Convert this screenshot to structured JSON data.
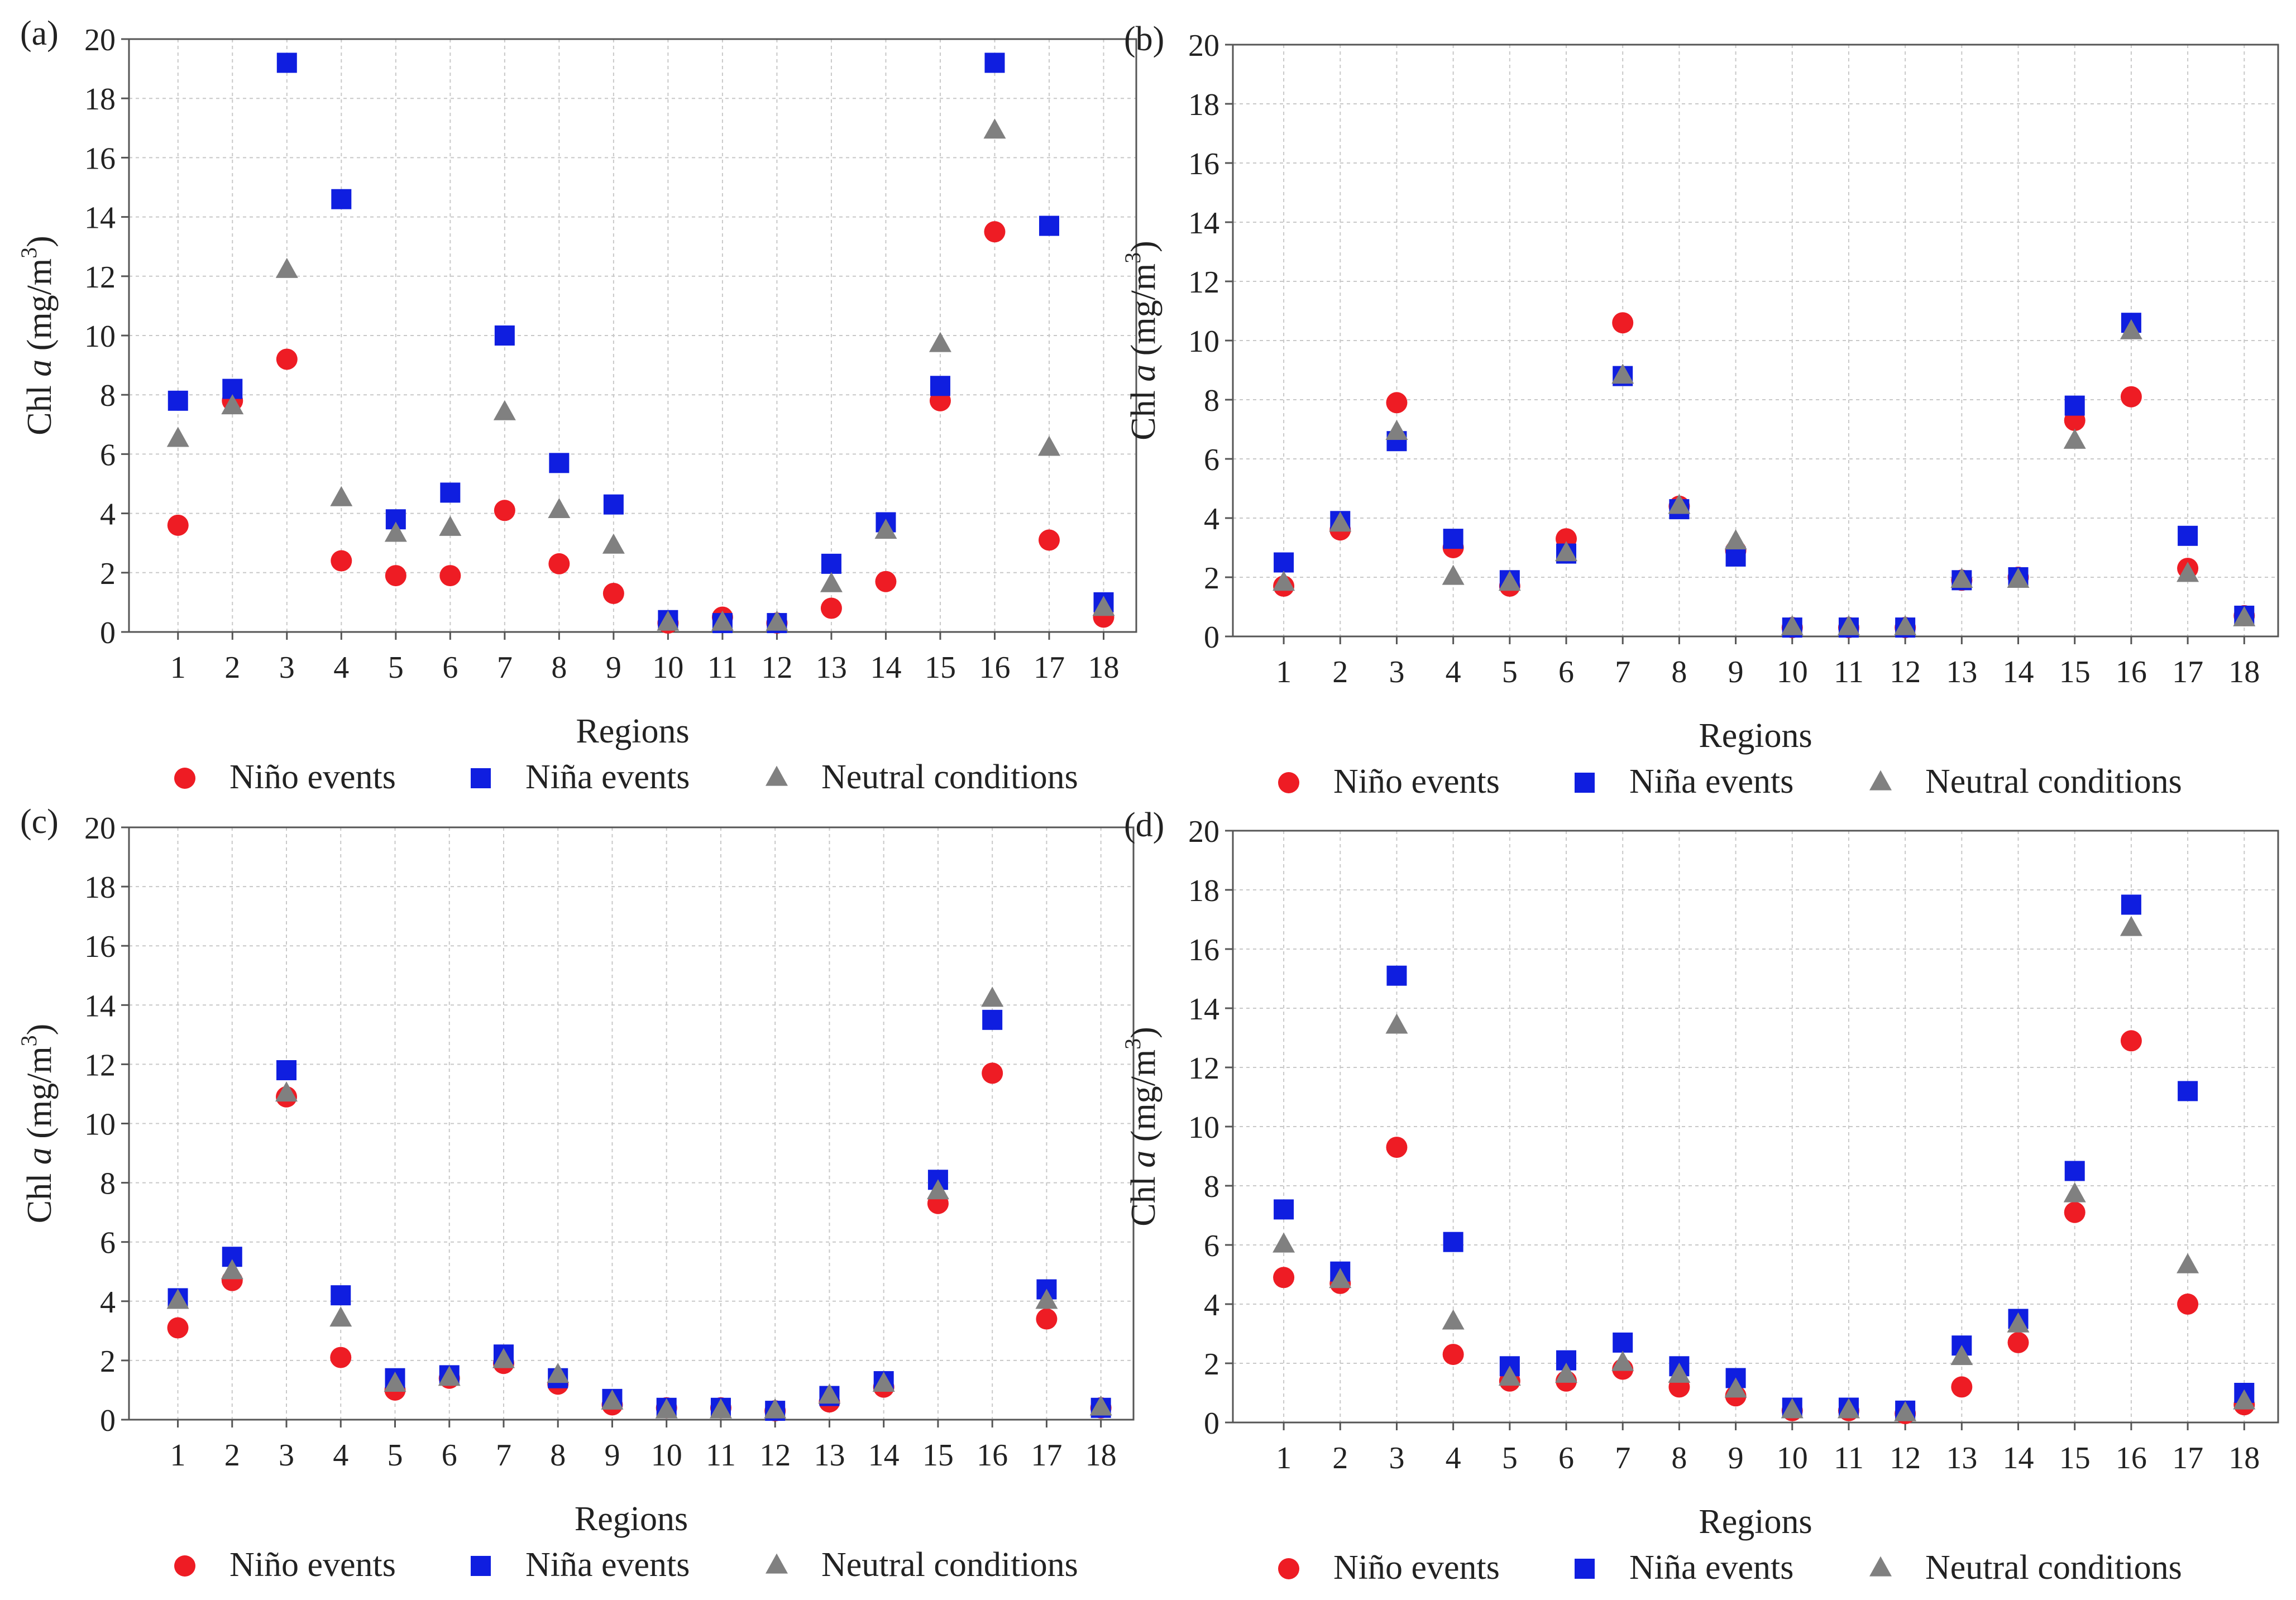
{
  "colors": {
    "nino": "#ee1c24",
    "nina": "#0f1ee0",
    "neutral": "#808080",
    "grid": "#c8c8c8",
    "axis": "#555555"
  },
  "chart_data": [
    {
      "type": "scatter",
      "panel_label": "(a)",
      "xlabel": "Regions",
      "ylabel_prefix": "Chl ",
      "ylabel_italic": "a",
      "ylabel_unit": " (mg/m",
      "ylabel_sup": "3",
      "ylabel_close": ")",
      "categories": [
        "1",
        "2",
        "3",
        "4",
        "5",
        "6",
        "7",
        "8",
        "9",
        "10",
        "11",
        "12",
        "13",
        "14",
        "15",
        "16",
        "17",
        "18"
      ],
      "yticks": [
        "0",
        "2",
        "4",
        "6",
        "8",
        "10",
        "12",
        "14",
        "16",
        "18",
        "20"
      ],
      "ylim": [
        0,
        20
      ],
      "grid": true,
      "legend_position": "bottom",
      "series": [
        {
          "name": "Niño events",
          "marker": "circle",
          "values": [
            3.6,
            7.8,
            9.2,
            2.4,
            1.9,
            1.9,
            4.1,
            2.3,
            1.3,
            0.3,
            0.5,
            0.3,
            0.8,
            1.7,
            7.8,
            13.5,
            3.1,
            0.5
          ]
        },
        {
          "name": "Niña events",
          "marker": "square",
          "values": [
            7.8,
            8.2,
            19.2,
            14.6,
            3.8,
            4.7,
            10.0,
            5.7,
            4.3,
            0.4,
            0.3,
            0.3,
            2.3,
            3.7,
            8.3,
            19.2,
            13.7,
            1.0
          ]
        },
        {
          "name": "Neutral conditions",
          "marker": "triangle",
          "values": [
            6.5,
            7.6,
            12.2,
            4.5,
            3.3,
            3.5,
            7.4,
            4.1,
            2.9,
            0.3,
            0.3,
            0.3,
            1.6,
            3.4,
            9.7,
            16.9,
            6.2,
            0.8
          ]
        }
      ]
    },
    {
      "type": "scatter",
      "panel_label": "(b)",
      "xlabel": "Regions",
      "ylabel_prefix": "Chl ",
      "ylabel_italic": "a",
      "ylabel_unit": " (mg/m",
      "ylabel_sup": "3",
      "ylabel_close": ")",
      "categories": [
        "1",
        "2",
        "3",
        "4",
        "5",
        "6",
        "7",
        "8",
        "9",
        "10",
        "11",
        "12",
        "13",
        "14",
        "15",
        "16",
        "17",
        "18"
      ],
      "yticks": [
        "0",
        "2",
        "4",
        "6",
        "8",
        "10",
        "12",
        "14",
        "16",
        "18",
        "20"
      ],
      "ylim": [
        0,
        20
      ],
      "grid": true,
      "legend_position": "bottom",
      "series": [
        {
          "name": "Niño events",
          "marker": "circle",
          "values": [
            1.7,
            3.6,
            7.9,
            3.0,
            1.7,
            3.3,
            10.6,
            4.4,
            2.9,
            0.3,
            0.3,
            0.3,
            1.9,
            2.0,
            7.3,
            8.1,
            2.3,
            0.7
          ]
        },
        {
          "name": "Niña events",
          "marker": "square",
          "values": [
            2.5,
            3.9,
            6.6,
            3.3,
            1.9,
            2.8,
            8.8,
            4.3,
            2.7,
            0.3,
            0.3,
            0.3,
            1.9,
            2.0,
            7.8,
            10.6,
            3.4,
            0.7
          ]
        },
        {
          "name": "Neutral conditions",
          "marker": "triangle",
          "values": [
            1.8,
            3.8,
            6.9,
            2.0,
            1.8,
            2.8,
            8.8,
            4.4,
            3.2,
            0.3,
            0.3,
            0.3,
            1.9,
            1.9,
            6.6,
            10.3,
            2.1,
            0.6
          ]
        }
      ]
    },
    {
      "type": "scatter",
      "panel_label": "(c)",
      "xlabel": "Regions",
      "ylabel_prefix": "Chl ",
      "ylabel_italic": "a",
      "ylabel_unit": " (mg/m",
      "ylabel_sup": "3",
      "ylabel_close": ")",
      "categories": [
        "1",
        "2",
        "3",
        "4",
        "5",
        "6",
        "7",
        "8",
        "9",
        "10",
        "11",
        "12",
        "13",
        "14",
        "15",
        "16",
        "17",
        "18"
      ],
      "yticks": [
        "0",
        "2",
        "4",
        "6",
        "8",
        "10",
        "12",
        "14",
        "16",
        "18",
        "20"
      ],
      "ylim": [
        0,
        20
      ],
      "grid": true,
      "legend_position": "bottom",
      "series": [
        {
          "name": "Niño events",
          "marker": "circle",
          "values": [
            3.1,
            4.7,
            10.9,
            2.1,
            1.0,
            1.4,
            1.9,
            1.2,
            0.5,
            0.4,
            0.4,
            0.3,
            0.6,
            1.1,
            7.3,
            11.7,
            3.4,
            0.4
          ]
        },
        {
          "name": "Niña events",
          "marker": "square",
          "values": [
            4.1,
            5.5,
            11.8,
            4.2,
            1.4,
            1.5,
            2.2,
            1.4,
            0.7,
            0.4,
            0.4,
            0.3,
            0.8,
            1.3,
            8.1,
            13.5,
            4.4,
            0.4
          ]
        },
        {
          "name": "Neutral conditions",
          "marker": "triangle",
          "values": [
            4.0,
            5.0,
            11.0,
            3.4,
            1.2,
            1.4,
            2.0,
            1.5,
            0.6,
            0.3,
            0.3,
            0.3,
            0.8,
            1.2,
            7.7,
            14.2,
            4.0,
            0.4
          ]
        }
      ]
    },
    {
      "type": "scatter",
      "panel_label": "(d)",
      "xlabel": "Regions",
      "ylabel_prefix": "Chl ",
      "ylabel_italic": "a",
      "ylabel_unit": " (mg/m",
      "ylabel_sup": "3",
      "ylabel_close": ")",
      "categories": [
        "1",
        "2",
        "3",
        "4",
        "5",
        "6",
        "7",
        "8",
        "9",
        "10",
        "11",
        "12",
        "13",
        "14",
        "15",
        "16",
        "17",
        "18"
      ],
      "yticks": [
        "0",
        "2",
        "4",
        "6",
        "8",
        "10",
        "12",
        "14",
        "16",
        "18",
        "20"
      ],
      "ylim": [
        0,
        20
      ],
      "grid": true,
      "legend_position": "bottom",
      "series": [
        {
          "name": "Niño events",
          "marker": "circle",
          "values": [
            4.9,
            4.7,
            9.3,
            2.3,
            1.4,
            1.4,
            1.8,
            1.2,
            0.9,
            0.4,
            0.4,
            0.3,
            1.2,
            2.7,
            7.1,
            12.9,
            4.0,
            0.6
          ]
        },
        {
          "name": "Niña events",
          "marker": "square",
          "values": [
            7.2,
            5.1,
            15.1,
            6.1,
            1.9,
            2.1,
            2.7,
            1.9,
            1.5,
            0.5,
            0.5,
            0.4,
            2.6,
            3.5,
            8.5,
            17.5,
            11.2,
            1.0
          ]
        },
        {
          "name": "Neutral conditions",
          "marker": "triangle",
          "values": [
            6.0,
            4.8,
            13.4,
            3.4,
            1.5,
            1.6,
            2.0,
            1.6,
            1.1,
            0.4,
            0.4,
            0.3,
            2.2,
            3.3,
            7.7,
            16.7,
            5.3,
            0.7
          ]
        }
      ]
    }
  ]
}
